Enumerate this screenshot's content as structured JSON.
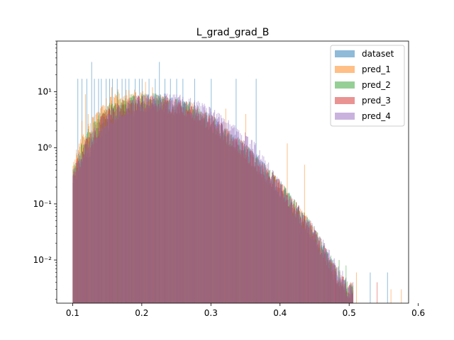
{
  "chart_data": {
    "type": "histogram",
    "title": "L_grad_grad_B",
    "xlabel": "",
    "ylabel": "",
    "xlim": [
      0.077,
      0.586
    ],
    "ylim": [
      0.0017,
      80
    ],
    "y_scale": "log",
    "grid": false,
    "legend_position": "top-right",
    "x_ticks": [
      0.1,
      0.2,
      0.3,
      0.4,
      0.5,
      0.6
    ],
    "x_tick_labels": [
      "0.1",
      "0.2",
      "0.3",
      "0.4",
      "0.5",
      "0.6"
    ],
    "y_ticks": [
      0.01,
      0.1,
      1,
      10
    ],
    "y_tick_labels": [
      "10⁻²",
      "10⁻¹",
      "10⁰",
      "10¹"
    ],
    "bin_width": 0.001,
    "x_range": [
      0.1,
      0.575
    ],
    "series": [
      {
        "name": "dataset",
        "color": "#1f77b4",
        "envelope": [
          [
            0.1,
            0.3
          ],
          [
            0.13,
            1.2
          ],
          [
            0.16,
            4.0
          ],
          [
            0.2,
            6.3
          ],
          [
            0.23,
            6.5
          ],
          [
            0.27,
            5.0
          ],
          [
            0.3,
            3.0
          ],
          [
            0.35,
            0.9
          ],
          [
            0.4,
            0.2
          ],
          [
            0.45,
            0.03
          ],
          [
            0.48,
            0.006
          ],
          [
            0.5,
            0.003
          ]
        ],
        "spikes": [
          [
            0.107,
            17
          ],
          [
            0.113,
            17
          ],
          [
            0.12,
            17
          ],
          [
            0.127,
            34
          ],
          [
            0.131,
            17
          ],
          [
            0.137,
            17
          ],
          [
            0.141,
            17
          ],
          [
            0.148,
            17
          ],
          [
            0.153,
            17
          ],
          [
            0.157,
            17
          ],
          [
            0.164,
            17
          ],
          [
            0.171,
            17
          ],
          [
            0.176,
            17
          ],
          [
            0.181,
            17
          ],
          [
            0.19,
            17
          ],
          [
            0.196,
            17
          ],
          [
            0.2,
            17
          ],
          [
            0.21,
            17
          ],
          [
            0.219,
            17
          ],
          [
            0.225,
            34
          ],
          [
            0.233,
            17
          ],
          [
            0.241,
            17
          ],
          [
            0.25,
            17
          ],
          [
            0.259,
            17
          ],
          [
            0.276,
            17
          ],
          [
            0.3,
            17
          ],
          [
            0.336,
            17
          ],
          [
            0.365,
            17
          ],
          [
            0.428,
            0.03
          ],
          [
            0.47,
            0.01
          ],
          [
            0.53,
            0.006
          ],
          [
            0.555,
            0.006
          ]
        ]
      },
      {
        "name": "pred_1",
        "color": "#ff7f0e",
        "envelope": [
          [
            0.1,
            0.5
          ],
          [
            0.12,
            2.0
          ],
          [
            0.15,
            6.0
          ],
          [
            0.18,
            8.5
          ],
          [
            0.2,
            8.0
          ],
          [
            0.23,
            6.5
          ],
          [
            0.27,
            5.0
          ],
          [
            0.3,
            3.0
          ],
          [
            0.35,
            0.9
          ],
          [
            0.4,
            0.2
          ],
          [
            0.45,
            0.03
          ],
          [
            0.48,
            0.006
          ],
          [
            0.5,
            0.003
          ]
        ],
        "spikes": [
          [
            0.105,
            0.8
          ],
          [
            0.113,
            3.0
          ],
          [
            0.118,
            9.0
          ],
          [
            0.122,
            4.0
          ],
          [
            0.156,
            12
          ],
          [
            0.165,
            11
          ],
          [
            0.205,
            15
          ],
          [
            0.215,
            12
          ],
          [
            0.321,
            5.0
          ],
          [
            0.35,
            4.0
          ],
          [
            0.41,
            1.2
          ],
          [
            0.435,
            0.5
          ],
          [
            0.51,
            0.006
          ],
          [
            0.56,
            0.003
          ],
          [
            0.575,
            0.003
          ]
        ]
      },
      {
        "name": "pred_2",
        "color": "#2ca02c",
        "envelope": [
          [
            0.1,
            0.35
          ],
          [
            0.12,
            1.5
          ],
          [
            0.15,
            4.5
          ],
          [
            0.18,
            6.5
          ],
          [
            0.21,
            7.5
          ],
          [
            0.23,
            6.8
          ],
          [
            0.27,
            5.0
          ],
          [
            0.3,
            3.0
          ],
          [
            0.35,
            0.9
          ],
          [
            0.4,
            0.2
          ],
          [
            0.45,
            0.03
          ],
          [
            0.48,
            0.006
          ],
          [
            0.5,
            0.003
          ]
        ],
        "spikes": [
          [
            0.165,
            10
          ],
          [
            0.185,
            9
          ],
          [
            0.455,
            0.015
          ],
          [
            0.463,
            0.015
          ],
          [
            0.473,
            0.012
          ],
          [
            0.485,
            0.01
          ],
          [
            0.495,
            0.008
          ]
        ]
      },
      {
        "name": "pred_3",
        "color": "#d62728",
        "envelope": [
          [
            0.1,
            0.3
          ],
          [
            0.12,
            1.2
          ],
          [
            0.15,
            4.0
          ],
          [
            0.18,
            6.2
          ],
          [
            0.21,
            6.8
          ],
          [
            0.23,
            6.6
          ],
          [
            0.27,
            5.0
          ],
          [
            0.3,
            3.0
          ],
          [
            0.35,
            0.9
          ],
          [
            0.4,
            0.2
          ],
          [
            0.45,
            0.03
          ],
          [
            0.48,
            0.006
          ],
          [
            0.5,
            0.003
          ]
        ],
        "spikes": [
          [
            0.44,
            0.03
          ],
          [
            0.48,
            0.008
          ],
          [
            0.54,
            0.004
          ]
        ]
      },
      {
        "name": "pred_4",
        "color": "#9467bd",
        "envelope": [
          [
            0.1,
            0.35
          ],
          [
            0.12,
            1.2
          ],
          [
            0.15,
            3.5
          ],
          [
            0.18,
            6.0
          ],
          [
            0.2,
            6.8
          ],
          [
            0.23,
            7.0
          ],
          [
            0.26,
            6.5
          ],
          [
            0.28,
            5.5
          ],
          [
            0.3,
            4.0
          ],
          [
            0.33,
            2.2
          ],
          [
            0.36,
            1.1
          ],
          [
            0.38,
            0.5
          ],
          [
            0.4,
            0.2
          ],
          [
            0.42,
            0.09
          ],
          [
            0.45,
            0.03
          ],
          [
            0.48,
            0.008
          ],
          [
            0.5,
            0.003
          ]
        ],
        "spikes": []
      }
    ]
  }
}
